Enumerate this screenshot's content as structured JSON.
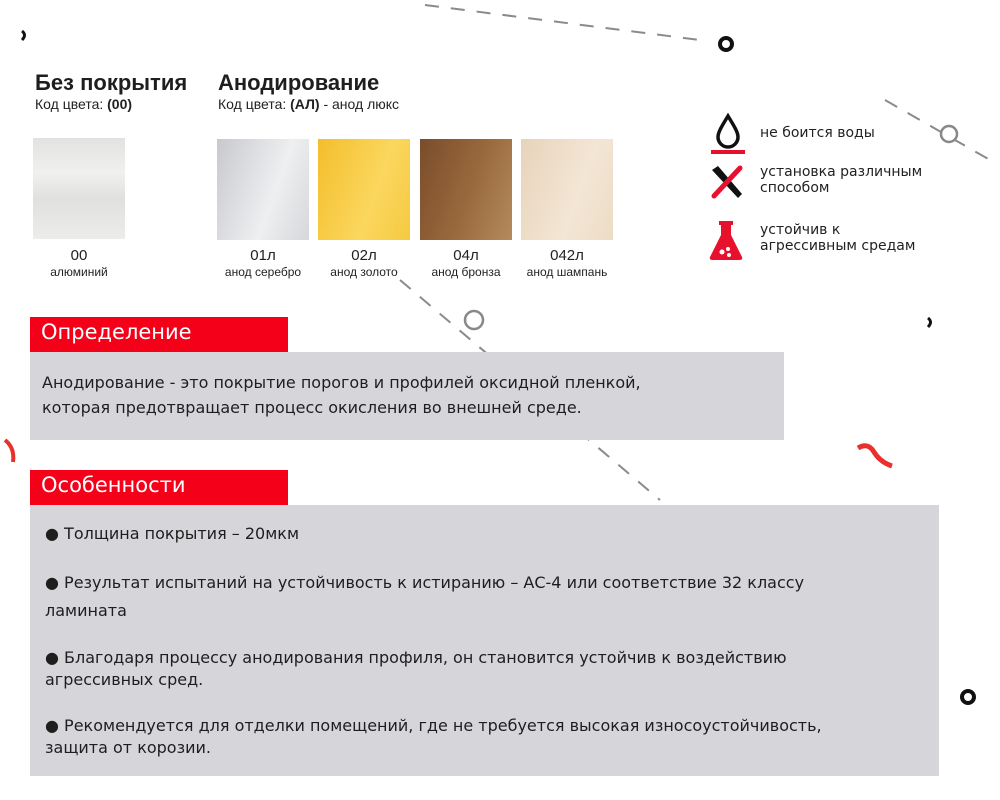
{
  "uncoated": {
    "title": "Без покрытия",
    "code_label": "Код цвета:",
    "code_value": "(00)"
  },
  "anodized": {
    "title": "Анодирование",
    "code_label": "Код цвета:",
    "code_value": "(АЛ)",
    "code_suffix": " - анод люкс"
  },
  "swatches": [
    {
      "code": "00",
      "name": "алюминий",
      "color": "#e6e6e4"
    },
    {
      "code": "01л",
      "name": "анод серебро",
      "color": "#d8d9dc"
    },
    {
      "code": "02л",
      "name": "анод золото",
      "color": "#f6c842"
    },
    {
      "code": "04л",
      "name": "анод бронза",
      "color": "#8e5e35"
    },
    {
      "code": "042л",
      "name": "анод шампань",
      "color": "#eddcc6"
    }
  ],
  "features": [
    {
      "icon": "water-drop-icon",
      "text": "не боится воды"
    },
    {
      "icon": "tools-icon",
      "line1": "установка различным",
      "line2": "способом"
    },
    {
      "icon": "flask-icon",
      "line1": "устойчив к",
      "line2": "агрессивным средам"
    }
  ],
  "definition": {
    "heading": "Определение",
    "line1": "Анодирование - это покрытие порогов и профилей оксидной пленкой,",
    "line2": "которая предотвращает процесс окисления во внешней среде."
  },
  "specs": {
    "heading": "Особенности",
    "bullets": [
      {
        "line1": "● Толщина покрытия – 20мкм"
      },
      {
        "line1": "●  Результат испытаний на устойчивость к истиранию – АС-4 или соответствие 32 классу",
        "line2": "ламината"
      },
      {
        "line1": "●  Благодаря процессу анодирования профиля, он становится устойчив к воздействию",
        "line2": "агрессивных сред."
      },
      {
        "line1": "● Рекомендуется для отделки помещений,  где не требуется высокая износоустойчивость,",
        "line2": "защита от корозии."
      }
    ]
  },
  "colors": {
    "accent": "#f40019",
    "panel": "#d6d6da"
  }
}
